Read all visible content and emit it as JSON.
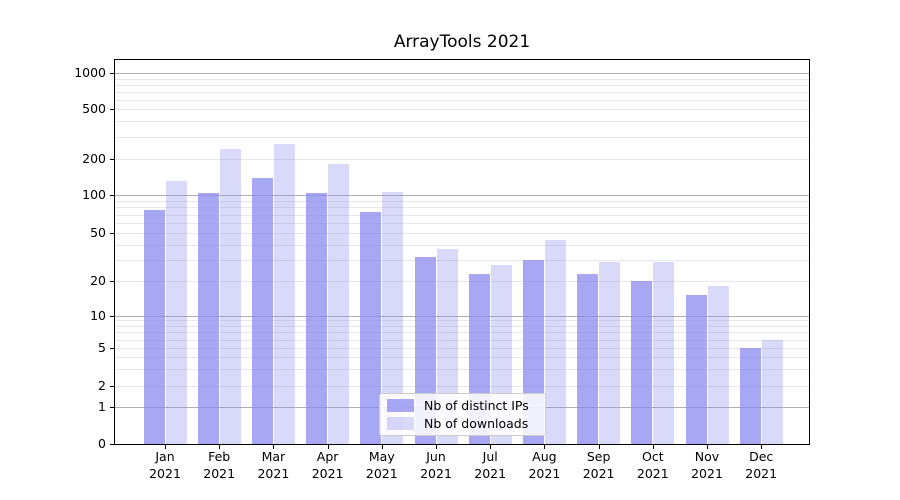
{
  "chart_data": {
    "type": "bar",
    "title": "ArrayTools 2021",
    "year": "2021",
    "months": [
      "Jan",
      "Feb",
      "Mar",
      "Apr",
      "May",
      "Jun",
      "Jul",
      "Aug",
      "Sep",
      "Oct",
      "Nov",
      "Dec"
    ],
    "categories": [
      "Jan 2021",
      "Feb 2021",
      "Mar 2021",
      "Apr 2021",
      "May 2021",
      "Jun 2021",
      "Jul 2021",
      "Aug 2021",
      "Sep 2021",
      "Oct 2021",
      "Nov 2021",
      "Dec 2021"
    ],
    "series": [
      {
        "name": "Nb of distinct IPs",
        "values": [
          76,
          103,
          137,
          103,
          74,
          32,
          23,
          30,
          23,
          20,
          15,
          5
        ],
        "color": "#8a8af0",
        "opacity": 0.75
      },
      {
        "name": "Nb of downloads",
        "values": [
          130,
          238,
          260,
          180,
          105,
          37,
          27,
          44,
          29,
          29,
          18,
          6
        ],
        "color": "#8a8af0",
        "opacity": 0.32
      }
    ],
    "y_ticks": [
      0,
      1,
      2,
      5,
      10,
      20,
      50,
      100,
      200,
      500,
      1000
    ],
    "ylim": [
      0,
      1000
    ],
    "yscale": "log-like",
    "grid": true,
    "legend_position": "lower center",
    "colors": {
      "bar_base": "#8a8af0",
      "grid_major": "#b0b0b0",
      "grid_minor": "#e8e8e8",
      "spine": "#000000",
      "text": "#000000"
    }
  }
}
